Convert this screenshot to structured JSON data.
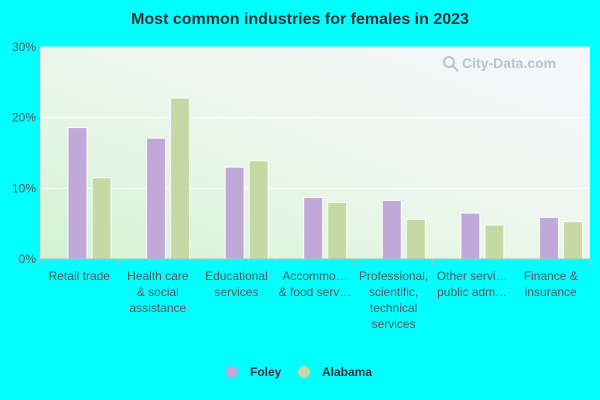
{
  "chart_data": {
    "type": "bar",
    "title": "Most common industries for females in 2023",
    "categories": [
      [
        "Retail trade"
      ],
      [
        "Health care",
        "& social",
        "assistance"
      ],
      [
        "Educational",
        "services"
      ],
      [
        "Accommo…",
        "& food serv…"
      ],
      [
        "Professional,",
        "scientific,",
        "technical",
        "services"
      ],
      [
        "Other servi…",
        "public adm…"
      ],
      [
        "Finance &",
        "insurance"
      ]
    ],
    "series": [
      {
        "name": "Foley",
        "color": "#c0a8d8",
        "values": [
          18.6,
          17.1,
          13.0,
          8.7,
          8.3,
          6.5,
          5.9
        ]
      },
      {
        "name": "Alabama",
        "color": "#c5d9a5",
        "values": [
          11.5,
          22.8,
          13.9,
          8.0,
          5.6,
          4.8,
          5.3
        ]
      }
    ],
    "yticks": [
      "0%",
      "10%",
      "20%",
      "30%"
    ],
    "ylim": [
      0,
      30
    ],
    "legend_position": "bottom-center",
    "grid": true,
    "watermark": "City-Data.com"
  }
}
